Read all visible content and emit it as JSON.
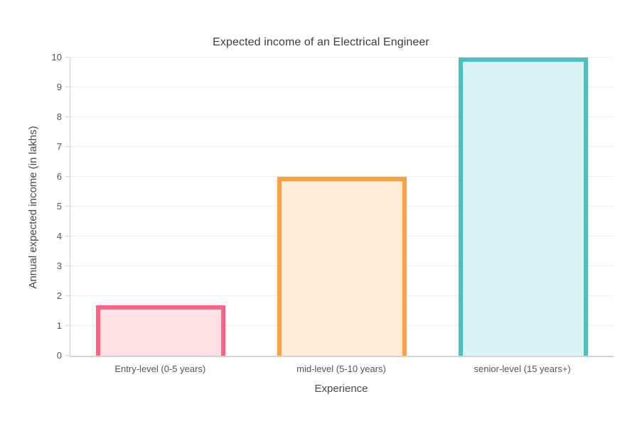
{
  "chart_data": {
    "type": "bar",
    "title": "Expected income of an Electrical Engineer",
    "categories": [
      "Entry-level (0-5 years)",
      "mid-level (5-10 years)",
      "senior-level (15 years+)"
    ],
    "values": [
      1.7,
      6,
      10
    ],
    "xlabel": "Experience",
    "ylabel": "Annual expected income (in lakhs)",
    "ylim": [
      0,
      10
    ],
    "ytick_step": 1,
    "ytick_labels": [
      "0",
      "1",
      "2",
      "3",
      "4",
      "5",
      "6",
      "7",
      "8",
      "9",
      "10"
    ],
    "grid": true,
    "legend": false,
    "bar_colors": [
      {
        "name": "pink",
        "border": "#FF6384",
        "fill": "#FFE0E6"
      },
      {
        "name": "orange",
        "border": "#FF9F40",
        "fill": "#FFECD9"
      },
      {
        "name": "teal",
        "border": "#4BC0C0",
        "fill": "#DBF2F2"
      }
    ],
    "border_width_px": 6,
    "grid_color": "#ededed",
    "axis_color": "#d2d2d2",
    "tick_text_color": "#555555",
    "title_color": "#3d3d3d",
    "background_color": "#ffffff"
  }
}
